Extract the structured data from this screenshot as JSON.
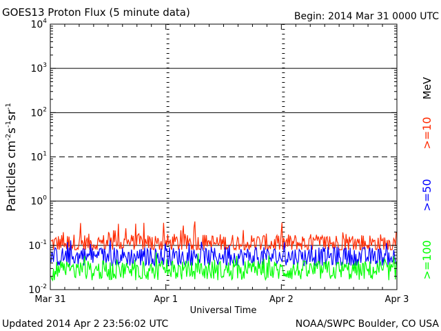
{
  "chart_data": {
    "type": "line",
    "title": "GOES13 Proton Flux (5 minute data)",
    "subtitle": "Begin: 2014 Mar 31 0000 UTC",
    "xlabel": "Universal Time",
    "ylabel": "Particles cm⁻²s⁻¹sr⁻¹",
    "ylabel_parts": {
      "base": "Particles cm",
      "e1": "-2",
      "mid1": "s",
      "e2": "-1",
      "mid2": "sr",
      "e3": "-1"
    },
    "x_ticks": [
      "Mar 31",
      "Apr 1",
      "Apr 2",
      "Apr 3"
    ],
    "y_scale": "log",
    "ylim": [
      0.01,
      10000
    ],
    "y_ticks": [
      {
        "base": "10",
        "exp": "-2",
        "value": 0.01
      },
      {
        "base": "10",
        "exp": "-1",
        "value": 0.1
      },
      {
        "base": "10",
        "exp": "0",
        "value": 1
      },
      {
        "base": "10",
        "exp": "1",
        "value": 10
      },
      {
        "base": "10",
        "exp": "2",
        "value": 100
      },
      {
        "base": "10",
        "exp": "3",
        "value": 1000
      },
      {
        "base": "10",
        "exp": "4",
        "value": 10000
      }
    ],
    "threshold_lines": [
      {
        "value": 10,
        "style": "dashed"
      },
      {
        "value": 1,
        "style": "solid"
      },
      {
        "value": 100,
        "style": "solid"
      },
      {
        "value": 1000,
        "style": "solid"
      },
      {
        "value": 0.1,
        "style": "solid"
      }
    ],
    "unit_label": "MeV",
    "series": [
      {
        "name": ">=10",
        "color": "#ff2a00",
        "typical": 0.11,
        "min": 0.08,
        "max": 0.6
      },
      {
        "name": ">=50",
        "color": "#0000ff",
        "typical": 0.055,
        "min": 0.035,
        "max": 0.13
      },
      {
        "name": ">=100",
        "color": "#00ff00",
        "typical": 0.027,
        "min": 0.016,
        "max": 0.07
      }
    ]
  },
  "footer": {
    "updated": "Updated 2014 Apr  2 23:56:02 UTC",
    "source": "NOAA/SWPC Boulder, CO USA"
  }
}
